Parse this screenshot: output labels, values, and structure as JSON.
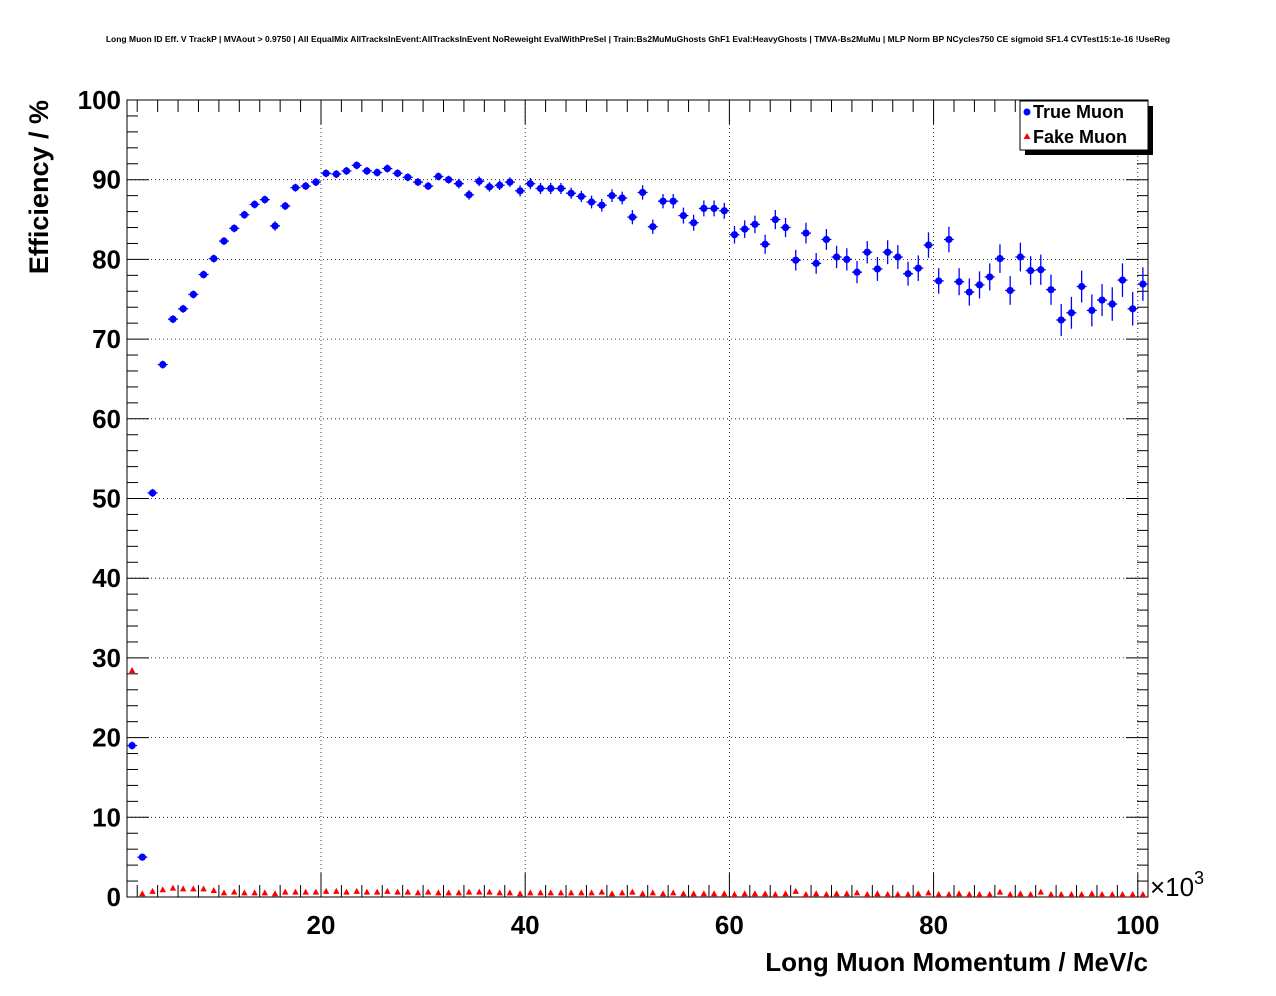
{
  "chart_data": {
    "type": "scatter",
    "title": "Long Muon ID Eff. V TrackP | MVAout > 0.9750 | All EqualMix AllTracksInEvent:AllTracksInEvent NoReweight EvalWithPreSel | Train:Bs2MuMuGhosts GhF1 Eval:HeavyGhosts | TMVA-Bs2MuMu | MLP Norm BP NCycles750 CE sigmoid SF1.4 CVTest15:1e-16 !UseReg",
    "xlabel": "Long Muon Momentum / MeV/c",
    "ylabel": "Efficiency / %",
    "x_multiplier": "×10",
    "x_multiplier_exp": "3",
    "xlim": [
      1,
      101
    ],
    "ylim": [
      0,
      100
    ],
    "xticks": [
      "20",
      "40",
      "60",
      "80",
      "100"
    ],
    "yticks": [
      "0",
      "10",
      "20",
      "30",
      "40",
      "50",
      "60",
      "70",
      "80",
      "90",
      "100"
    ],
    "grid": true,
    "legend_position": "top-right",
    "x": [
      1.5,
      2.5,
      3.5,
      4.5,
      5.5,
      6.5,
      7.5,
      8.5,
      9.5,
      10.5,
      11.5,
      12.5,
      13.5,
      14.5,
      15.5,
      16.5,
      17.5,
      18.5,
      19.5,
      20.5,
      21.5,
      22.5,
      23.5,
      24.5,
      25.5,
      26.5,
      27.5,
      28.5,
      29.5,
      30.5,
      31.5,
      32.5,
      33.5,
      34.5,
      35.5,
      36.5,
      37.5,
      38.5,
      39.5,
      40.5,
      41.5,
      42.5,
      43.5,
      44.5,
      45.5,
      46.5,
      47.5,
      48.5,
      49.5,
      50.5,
      51.5,
      52.5,
      53.5,
      54.5,
      55.5,
      56.5,
      57.5,
      58.5,
      59.5,
      60.5,
      61.5,
      62.5,
      63.5,
      64.5,
      65.5,
      66.5,
      67.5,
      68.5,
      69.5,
      70.5,
      71.5,
      72.5,
      73.5,
      74.5,
      75.5,
      76.5,
      77.5,
      78.5,
      79.5,
      80.5,
      81.5,
      82.5,
      83.5,
      84.5,
      85.5,
      86.5,
      87.5,
      88.5,
      89.5,
      90.5,
      91.5,
      92.5,
      93.5,
      94.5,
      95.5,
      96.5,
      97.5,
      98.5,
      99.5,
      100.5
    ],
    "series": [
      {
        "name": "True Muon",
        "color": "#0000ff",
        "marker": "circle",
        "y": [
          19.0,
          5.0,
          50.7,
          66.8,
          72.5,
          73.8,
          75.6,
          78.1,
          80.1,
          82.3,
          83.9,
          85.6,
          86.9,
          87.5,
          84.2,
          86.7,
          89.0,
          89.2,
          89.7,
          90.8,
          90.7,
          91.1,
          91.8,
          91.1,
          90.9,
          91.4,
          90.8,
          90.3,
          89.7,
          89.2,
          90.4,
          90.0,
          89.5,
          88.1,
          89.8,
          89.1,
          89.3,
          89.7,
          88.6,
          89.5,
          88.9,
          88.9,
          88.9,
          88.3,
          87.9,
          87.2,
          86.8,
          88.0,
          87.7,
          85.3,
          88.4,
          84.1,
          87.3,
          87.3,
          85.5,
          84.6,
          86.4,
          86.4,
          86.1,
          83.1,
          83.8,
          84.4,
          81.9,
          85.0,
          84.0,
          79.9,
          83.3,
          79.5,
          82.5,
          80.3,
          80.0,
          78.4,
          80.9,
          78.8,
          80.9,
          80.3,
          78.2,
          78.9,
          81.8,
          77.3,
          82.5,
          77.2,
          75.9,
          76.8,
          77.8,
          80.1,
          76.1,
          80.3,
          78.6,
          78.7,
          76.2,
          72.4,
          73.3,
          76.6,
          73.6,
          74.9,
          74.4,
          77.4,
          73.8,
          76.9
        ],
        "yerr": [
          0.5,
          0.3,
          0.5,
          0.5,
          0.5,
          0.5,
          0.5,
          0.5,
          0.5,
          0.5,
          0.5,
          0.5,
          0.5,
          0.5,
          0.6,
          0.5,
          0.5,
          0.5,
          0.5,
          0.5,
          0.5,
          0.5,
          0.5,
          0.5,
          0.5,
          0.5,
          0.5,
          0.5,
          0.5,
          0.5,
          0.5,
          0.5,
          0.6,
          0.6,
          0.6,
          0.6,
          0.6,
          0.6,
          0.7,
          0.7,
          0.7,
          0.7,
          0.7,
          0.7,
          0.7,
          0.8,
          0.8,
          0.8,
          0.8,
          0.9,
          0.9,
          0.9,
          0.9,
          0.9,
          1.0,
          1.0,
          1.0,
          1.0,
          1.0,
          1.1,
          1.1,
          1.1,
          1.2,
          1.2,
          1.2,
          1.3,
          1.3,
          1.3,
          1.3,
          1.4,
          1.4,
          1.4,
          1.4,
          1.5,
          1.5,
          1.5,
          1.5,
          1.6,
          1.6,
          1.6,
          1.6,
          1.7,
          1.7,
          1.7,
          1.7,
          1.8,
          1.8,
          1.8,
          1.8,
          1.9,
          1.9,
          2.0,
          2.0,
          2.0,
          2.0,
          2.0,
          2.1,
          2.1,
          2.1,
          2.1
        ]
      },
      {
        "name": "Fake Muon",
        "color": "#ff0000",
        "marker": "triangle",
        "y": [
          28.4,
          0.4,
          0.7,
          0.9,
          1.1,
          1.0,
          1.0,
          1.0,
          0.8,
          0.5,
          0.6,
          0.5,
          0.5,
          0.5,
          0.4,
          0.6,
          0.6,
          0.6,
          0.6,
          0.7,
          0.7,
          0.6,
          0.7,
          0.6,
          0.6,
          0.7,
          0.6,
          0.6,
          0.5,
          0.6,
          0.5,
          0.5,
          0.5,
          0.6,
          0.6,
          0.6,
          0.5,
          0.5,
          0.4,
          0.5,
          0.5,
          0.5,
          0.5,
          0.5,
          0.5,
          0.5,
          0.6,
          0.4,
          0.5,
          0.6,
          0.4,
          0.5,
          0.4,
          0.5,
          0.4,
          0.4,
          0.4,
          0.4,
          0.4,
          0.3,
          0.4,
          0.4,
          0.4,
          0.3,
          0.4,
          0.7,
          0.3,
          0.4,
          0.3,
          0.4,
          0.4,
          0.5,
          0.3,
          0.4,
          0.3,
          0.3,
          0.3,
          0.4,
          0.5,
          0.3,
          0.3,
          0.4,
          0.3,
          0.3,
          0.3,
          0.6,
          0.3,
          0.4,
          0.3,
          0.6,
          0.3,
          0.3,
          0.3,
          0.3,
          0.4,
          0.3,
          0.3,
          0.3,
          0.3,
          0.3
        ],
        "yerr": [
          0.3,
          0.1,
          0.1,
          0.1,
          0.1,
          0.1,
          0.1,
          0.1,
          0.1,
          0.1,
          0.1,
          0.1,
          0.1,
          0.1,
          0.1,
          0.1,
          0.1,
          0.1,
          0.1,
          0.1,
          0.1,
          0.1,
          0.1,
          0.1,
          0.1,
          0.1,
          0.1,
          0.1,
          0.1,
          0.1,
          0.1,
          0.1,
          0.1,
          0.1,
          0.1,
          0.1,
          0.1,
          0.1,
          0.1,
          0.1,
          0.1,
          0.1,
          0.1,
          0.1,
          0.1,
          0.1,
          0.1,
          0.1,
          0.1,
          0.1,
          0.1,
          0.1,
          0.1,
          0.1,
          0.1,
          0.1,
          0.1,
          0.1,
          0.1,
          0.1,
          0.1,
          0.1,
          0.1,
          0.1,
          0.1,
          0.1,
          0.1,
          0.1,
          0.1,
          0.1,
          0.1,
          0.1,
          0.1,
          0.1,
          0.1,
          0.1,
          0.1,
          0.1,
          0.1,
          0.1,
          0.1,
          0.1,
          0.1,
          0.1,
          0.1,
          0.1,
          0.1,
          0.1,
          0.1,
          0.1,
          0.1,
          0.1,
          0.1,
          0.1,
          0.1,
          0.1,
          0.1,
          0.1,
          0.1,
          0.1
        ]
      }
    ]
  }
}
